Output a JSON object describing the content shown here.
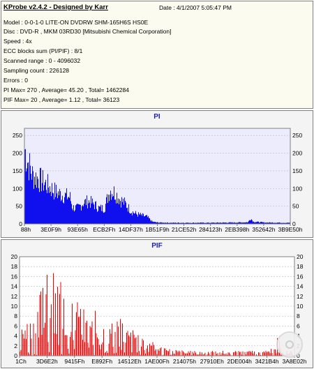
{
  "header": {
    "title": "KProbe v2.4.2 - Designed by Karr",
    "date": "Date : 4/1/2007 5:05:47 PM",
    "lines": [
      "Model : 0-0-1-0 LITE-ON DVDRW SHM-165H6S HS0E",
      "Disc : DVD-R , MKM 03RD30  [Mitsubishi Chemical Corporation]",
      "Speed : 4x",
      "ECC blocks sum (PI/PIF) : 8/1",
      "Scanned range : 0 - 4096032",
      "Sampling count : 226128",
      "Errors : 0",
      "PI Max= 270 , Average= 45.20 , Total= 1462284",
      "PIF Max= 20 , Average= 1.12 , Total= 36123"
    ]
  },
  "colors": {
    "pi": "#1010ee",
    "pif": "#ee0000",
    "plot_bg": "#ececfc",
    "title": "#2020c0"
  },
  "chart_data": [
    {
      "type": "area",
      "title": "PI",
      "color": "#1010ee",
      "ylim": [
        0,
        270
      ],
      "yticks": [
        0,
        50,
        100,
        150,
        200,
        250
      ],
      "xticks": [
        "88h",
        "3E0F9h",
        "93E65h",
        "ECB2Fh",
        "14DF37h",
        "1B51F9h",
        "21CE52h",
        "284123h",
        "2EB398h",
        "352642h",
        "3B9E50h"
      ],
      "x": [
        0,
        0.01,
        0.03,
        0.05,
        0.08,
        0.1,
        0.12,
        0.15,
        0.17,
        0.18,
        0.2,
        0.22,
        0.24,
        0.26,
        0.28,
        0.3,
        0.32,
        0.34,
        0.36,
        0.38,
        0.4,
        0.42,
        0.44,
        0.46,
        0.48,
        0.5,
        0.55,
        0.6,
        0.7,
        0.8,
        0.84,
        0.85,
        0.86,
        0.9,
        1.0
      ],
      "values": [
        265,
        225,
        170,
        160,
        140,
        125,
        110,
        100,
        95,
        58,
        55,
        75,
        80,
        70,
        55,
        55,
        120,
        110,
        85,
        70,
        45,
        35,
        30,
        25,
        8,
        5,
        4,
        4,
        4,
        5,
        6,
        20,
        8,
        5,
        4
      ]
    },
    {
      "type": "bar",
      "title": "PIF",
      "color": "#ee0000",
      "ylim": [
        0,
        20
      ],
      "yticks": [
        0,
        2,
        4,
        6,
        8,
        10,
        12,
        14,
        16,
        18,
        20
      ],
      "xticks": [
        "1Ch",
        "3D6E2h",
        "9415Fh",
        "E892Fh",
        "14512Eh",
        "1AE00Fh",
        "214075h",
        "27910Eh",
        "2DE004h",
        "3421B4h",
        "3A8E02h"
      ],
      "x": [
        0,
        0.02,
        0.05,
        0.08,
        0.1,
        0.12,
        0.14,
        0.16,
        0.18,
        0.2,
        0.22,
        0.24,
        0.26,
        0.28,
        0.3,
        0.33,
        0.36,
        0.4,
        0.45,
        0.48,
        0.5,
        0.6,
        0.7,
        0.8,
        0.9,
        0.93,
        0.94,
        0.95,
        1.0
      ],
      "values": [
        6,
        8,
        9,
        14,
        20,
        20,
        16,
        19,
        14,
        10,
        12,
        8,
        7,
        10,
        8,
        7,
        8,
        6,
        4,
        3,
        2,
        1,
        1,
        1,
        1,
        2,
        5,
        1,
        1
      ]
    }
  ]
}
